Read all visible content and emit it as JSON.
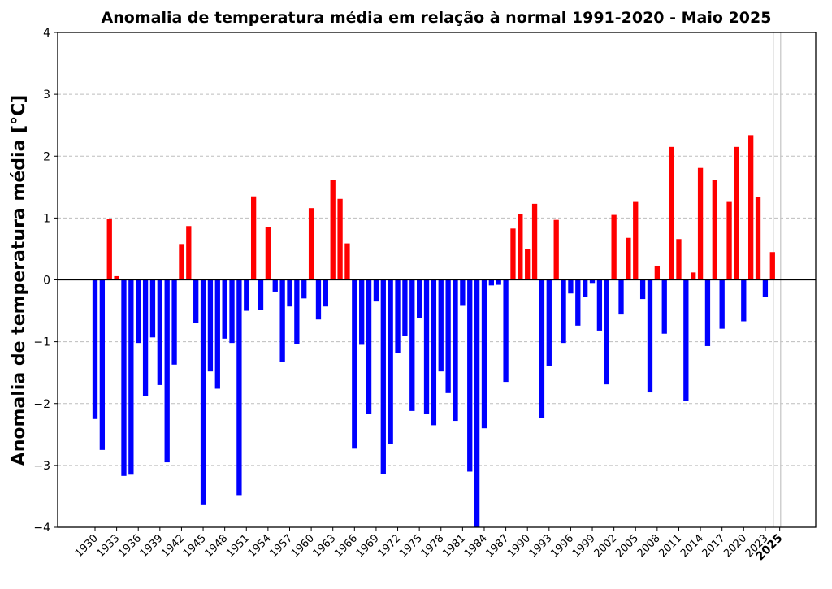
{
  "chart_data": {
    "type": "bar",
    "title": "Anomalia de temperatura média em relação à normal 1991-2020 - Maio 2025",
    "xlabel": "",
    "ylabel": "Anomalia de temperatura média [°C]",
    "ylim": [
      -4,
      4
    ],
    "yticks": [
      "4",
      "3",
      "2",
      "1",
      "0",
      "−1",
      "−2",
      "−3",
      "−4"
    ],
    "xticks": [
      "1930",
      "1933",
      "1936",
      "1939",
      "1942",
      "1945",
      "1948",
      "1951",
      "1954",
      "1957",
      "1960",
      "1963",
      "1966",
      "1969",
      "1972",
      "1975",
      "1978",
      "1981",
      "1984",
      "1987",
      "1990",
      "1993",
      "1996",
      "1999",
      "2002",
      "2005",
      "2008",
      "2011",
      "2014",
      "2017",
      "2020",
      "2023",
      "2025"
    ],
    "highlight_year": "2025",
    "grid": true,
    "colors": {
      "positive": "#ff0000",
      "negative": "#0000ff",
      "zero_line": "#000000",
      "grid": "#bdbdbd"
    },
    "start_year": 1930,
    "values": [
      -2.25,
      -2.75,
      0.98,
      0.06,
      -3.17,
      -3.15,
      -1.02,
      -1.88,
      -0.93,
      -1.7,
      -2.95,
      -1.37,
      0.58,
      0.87,
      -0.7,
      -3.63,
      -1.48,
      -1.76,
      -0.95,
      -1.02,
      -3.48,
      -0.5,
      1.35,
      -0.48,
      0.86,
      -0.19,
      -1.32,
      -0.43,
      -1.04,
      -0.3,
      1.16,
      -0.64,
      -0.43,
      1.62,
      1.31,
      0.59,
      -2.73,
      -1.05,
      -2.17,
      -0.35,
      -3.14,
      -2.65,
      -1.18,
      -0.91,
      -2.12,
      -0.62,
      -2.17,
      -2.35,
      -1.48,
      -1.83,
      -2.28,
      -0.42,
      -3.1,
      -4.0,
      -2.4,
      -0.09,
      -0.08,
      -1.65,
      0.83,
      1.06,
      0.5,
      1.23,
      -2.23,
      -1.39,
      0.97,
      -1.02,
      -0.22,
      -0.74,
      -0.27,
      -0.05,
      -0.82,
      -1.69,
      1.05,
      -0.56,
      0.68,
      1.26,
      -0.31,
      -1.82,
      0.23,
      -0.87,
      2.15,
      0.66,
      -1.96,
      0.12,
      1.81,
      -1.07,
      1.62,
      -0.79,
      1.26,
      2.15,
      -0.67,
      2.34,
      1.34,
      -0.27,
      0.45
    ]
  }
}
